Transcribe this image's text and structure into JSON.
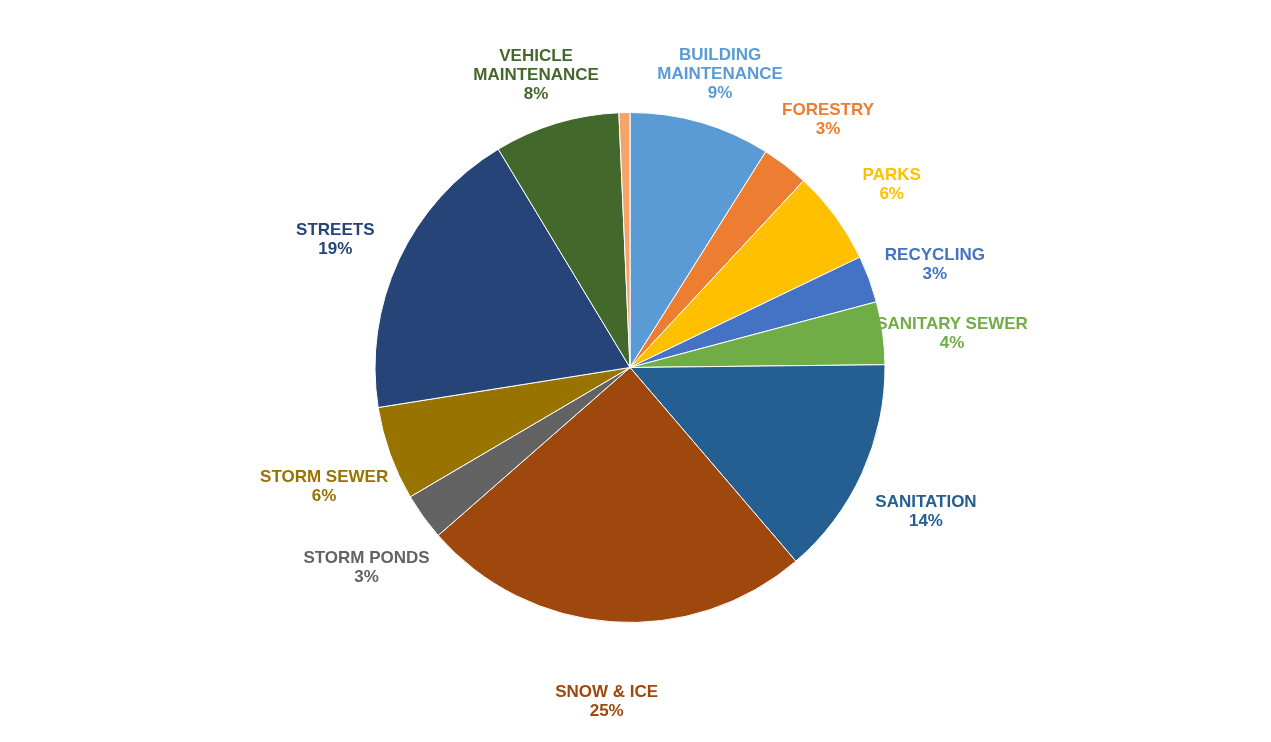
{
  "chart_data": {
    "type": "pie",
    "categories": [
      "BUILDING MAINTENANCE",
      "FORESTRY",
      "PARKS",
      "RECYCLING",
      "SANITARY SEWER",
      "SANITATION",
      "SNOW & ICE",
      "STORM PONDS",
      "STORM SEWER",
      "STREETS",
      "VEHICLE MAINTENANCE",
      null
    ],
    "values": [
      9,
      3,
      6,
      3,
      4,
      14,
      25,
      3,
      6,
      19,
      8,
      0.7
    ],
    "value_labels": [
      "9%",
      "3%",
      "6%",
      "3%",
      "4%",
      "14%",
      "25%",
      "3%",
      "6%",
      "19%",
      "8%",
      null
    ],
    "colors": [
      "#5b9bd5",
      "#ed7d31",
      "#ffc000",
      "#4472c4",
      "#70ad47",
      "#255e91",
      "#9e480e",
      "#636363",
      "#997300",
      "#264478",
      "#43682b",
      "#f4a46a"
    ],
    "legend": false
  }
}
